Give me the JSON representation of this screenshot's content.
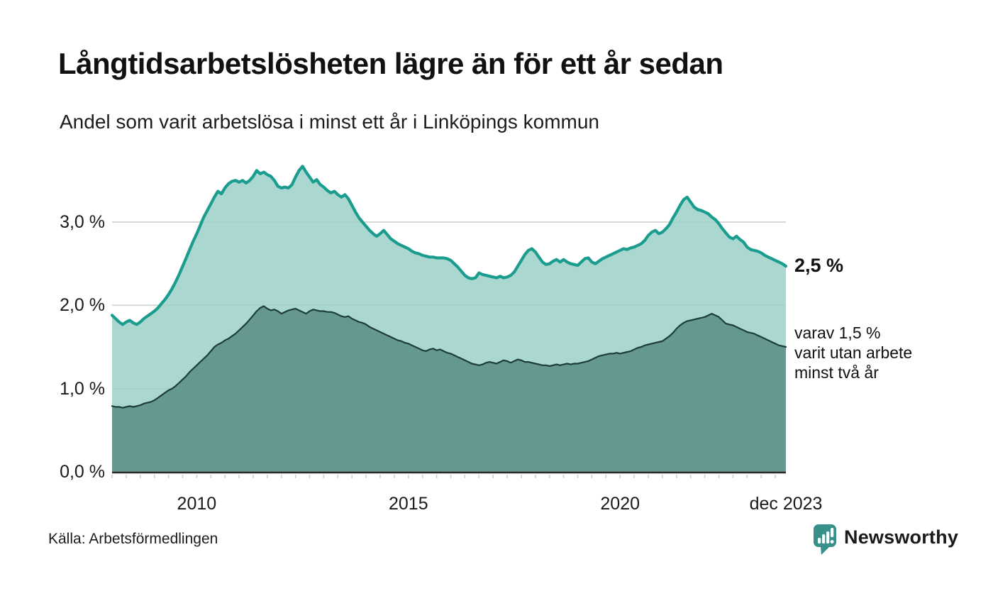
{
  "title": "Långtidsarbetslösheten lägre än för ett år sedan",
  "subtitle": "Andel som varit arbetslösa i minst ett år i Linköpings kommun",
  "source": "Källa: Arbetsförmedlingen",
  "brand": {
    "name": "Newsworthy",
    "color": "#37918a",
    "icon": "bar-chart-bubble-icon"
  },
  "chart_data": {
    "type": "area",
    "title": "Långtidsarbetslösheten lägre än för ett år sedan",
    "subtitle": "Andel som varit arbetslösa i minst ett år i Linköpings kommun",
    "xlabel": "",
    "ylabel": "",
    "unit": "%",
    "frequency": "monthly",
    "x_start": "2008-01",
    "x_end": "2023-12",
    "ylim": [
      0,
      3.75
    ],
    "grid": "horizontal",
    "grid_color": "#d8d8d8",
    "baseline_color": "#2a2a2a",
    "tick_color": "#cfcfcf",
    "y_ticks": [
      {
        "label": "3,0 %",
        "value": 3
      },
      {
        "label": "2,0 %",
        "value": 2
      },
      {
        "label": "1,0 %",
        "value": 1
      },
      {
        "label": "0,0 %",
        "value": 0
      }
    ],
    "x_ticks": [
      {
        "label": "2010",
        "month_index": 24
      },
      {
        "label": "2015",
        "month_index": 84
      },
      {
        "label": "2020",
        "month_index": 144
      },
      {
        "label": "dec 2023",
        "month_index": 191
      }
    ],
    "annotations": [
      {
        "text": "2,5 %",
        "at_value": 2.47,
        "style": "bold"
      },
      {
        "lines": [
          "varav 1,5 %",
          "varit utan arbete",
          "minst två år"
        ],
        "at_value": 1.5,
        "style": "regular"
      }
    ],
    "series": [
      {
        "name": "Andel arbetslösa minst ett år",
        "line_color": "#1a9c8e",
        "line_width": 4.2,
        "fill": "#9cd0c9",
        "fill_opacity": 0.85,
        "end_value_label": "2,5 %",
        "values": [
          1.88,
          1.84,
          1.8,
          1.77,
          1.8,
          1.82,
          1.79,
          1.77,
          1.8,
          1.84,
          1.87,
          1.9,
          1.93,
          1.97,
          2.02,
          2.07,
          2.13,
          2.2,
          2.28,
          2.37,
          2.47,
          2.57,
          2.67,
          2.77,
          2.86,
          2.96,
          3.06,
          3.14,
          3.22,
          3.3,
          3.37,
          3.34,
          3.41,
          3.46,
          3.49,
          3.5,
          3.48,
          3.5,
          3.47,
          3.5,
          3.55,
          3.62,
          3.58,
          3.6,
          3.57,
          3.55,
          3.5,
          3.43,
          3.41,
          3.42,
          3.41,
          3.45,
          3.54,
          3.62,
          3.67,
          3.6,
          3.54,
          3.48,
          3.51,
          3.45,
          3.42,
          3.38,
          3.35,
          3.37,
          3.33,
          3.3,
          3.33,
          3.28,
          3.2,
          3.12,
          3.05,
          3.0,
          2.95,
          2.9,
          2.86,
          2.83,
          2.86,
          2.9,
          2.85,
          2.8,
          2.77,
          2.74,
          2.72,
          2.7,
          2.68,
          2.65,
          2.63,
          2.62,
          2.6,
          2.59,
          2.58,
          2.58,
          2.57,
          2.57,
          2.57,
          2.56,
          2.54,
          2.5,
          2.46,
          2.41,
          2.36,
          2.33,
          2.32,
          2.33,
          2.39,
          2.37,
          2.36,
          2.35,
          2.34,
          2.33,
          2.35,
          2.33,
          2.34,
          2.36,
          2.4,
          2.47,
          2.54,
          2.61,
          2.66,
          2.68,
          2.64,
          2.58,
          2.52,
          2.49,
          2.5,
          2.53,
          2.55,
          2.52,
          2.55,
          2.52,
          2.5,
          2.49,
          2.48,
          2.52,
          2.56,
          2.57,
          2.52,
          2.5,
          2.53,
          2.56,
          2.58,
          2.6,
          2.62,
          2.64,
          2.66,
          2.68,
          2.67,
          2.69,
          2.7,
          2.72,
          2.74,
          2.78,
          2.84,
          2.88,
          2.9,
          2.86,
          2.88,
          2.92,
          2.97,
          3.05,
          3.12,
          3.2,
          3.27,
          3.3,
          3.24,
          3.18,
          3.15,
          3.14,
          3.12,
          3.1,
          3.06,
          3.03,
          2.98,
          2.92,
          2.87,
          2.82,
          2.8,
          2.83,
          2.79,
          2.76,
          2.7,
          2.67,
          2.66,
          2.65,
          2.63,
          2.6,
          2.58,
          2.56,
          2.54,
          2.52,
          2.5,
          2.47
        ]
      },
      {
        "name": "varav arbetslösa minst två år",
        "line_color": "#1e3d38",
        "line_width": 2.2,
        "fill": "#5e928b",
        "fill_opacity": 0.92,
        "end_value_label": "1,5 %",
        "values": [
          0.79,
          0.78,
          0.78,
          0.77,
          0.78,
          0.79,
          0.78,
          0.79,
          0.8,
          0.82,
          0.83,
          0.84,
          0.86,
          0.89,
          0.92,
          0.95,
          0.98,
          1.0,
          1.03,
          1.07,
          1.11,
          1.15,
          1.2,
          1.24,
          1.28,
          1.32,
          1.36,
          1.4,
          1.45,
          1.5,
          1.53,
          1.55,
          1.58,
          1.6,
          1.63,
          1.66,
          1.7,
          1.74,
          1.78,
          1.83,
          1.88,
          1.93,
          1.97,
          1.99,
          1.96,
          1.94,
          1.95,
          1.93,
          1.9,
          1.92,
          1.94,
          1.95,
          1.96,
          1.94,
          1.92,
          1.9,
          1.93,
          1.95,
          1.94,
          1.93,
          1.93,
          1.92,
          1.92,
          1.91,
          1.89,
          1.87,
          1.86,
          1.87,
          1.84,
          1.82,
          1.8,
          1.79,
          1.77,
          1.74,
          1.72,
          1.7,
          1.68,
          1.66,
          1.64,
          1.62,
          1.6,
          1.58,
          1.57,
          1.55,
          1.54,
          1.52,
          1.5,
          1.48,
          1.46,
          1.45,
          1.47,
          1.48,
          1.46,
          1.47,
          1.45,
          1.43,
          1.42,
          1.4,
          1.38,
          1.36,
          1.34,
          1.32,
          1.3,
          1.29,
          1.28,
          1.29,
          1.31,
          1.32,
          1.31,
          1.3,
          1.32,
          1.34,
          1.33,
          1.31,
          1.33,
          1.35,
          1.34,
          1.32,
          1.32,
          1.31,
          1.3,
          1.29,
          1.28,
          1.28,
          1.27,
          1.28,
          1.29,
          1.28,
          1.29,
          1.3,
          1.29,
          1.3,
          1.3,
          1.31,
          1.32,
          1.33,
          1.35,
          1.37,
          1.39,
          1.4,
          1.41,
          1.42,
          1.42,
          1.43,
          1.42,
          1.43,
          1.44,
          1.45,
          1.47,
          1.49,
          1.5,
          1.52,
          1.53,
          1.54,
          1.55,
          1.56,
          1.57,
          1.6,
          1.63,
          1.67,
          1.72,
          1.76,
          1.79,
          1.81,
          1.82,
          1.83,
          1.84,
          1.85,
          1.86,
          1.88,
          1.9,
          1.88,
          1.86,
          1.82,
          1.78,
          1.77,
          1.76,
          1.74,
          1.72,
          1.7,
          1.68,
          1.67,
          1.66,
          1.64,
          1.62,
          1.6,
          1.58,
          1.56,
          1.54,
          1.52,
          1.51,
          1.5
        ]
      }
    ]
  }
}
